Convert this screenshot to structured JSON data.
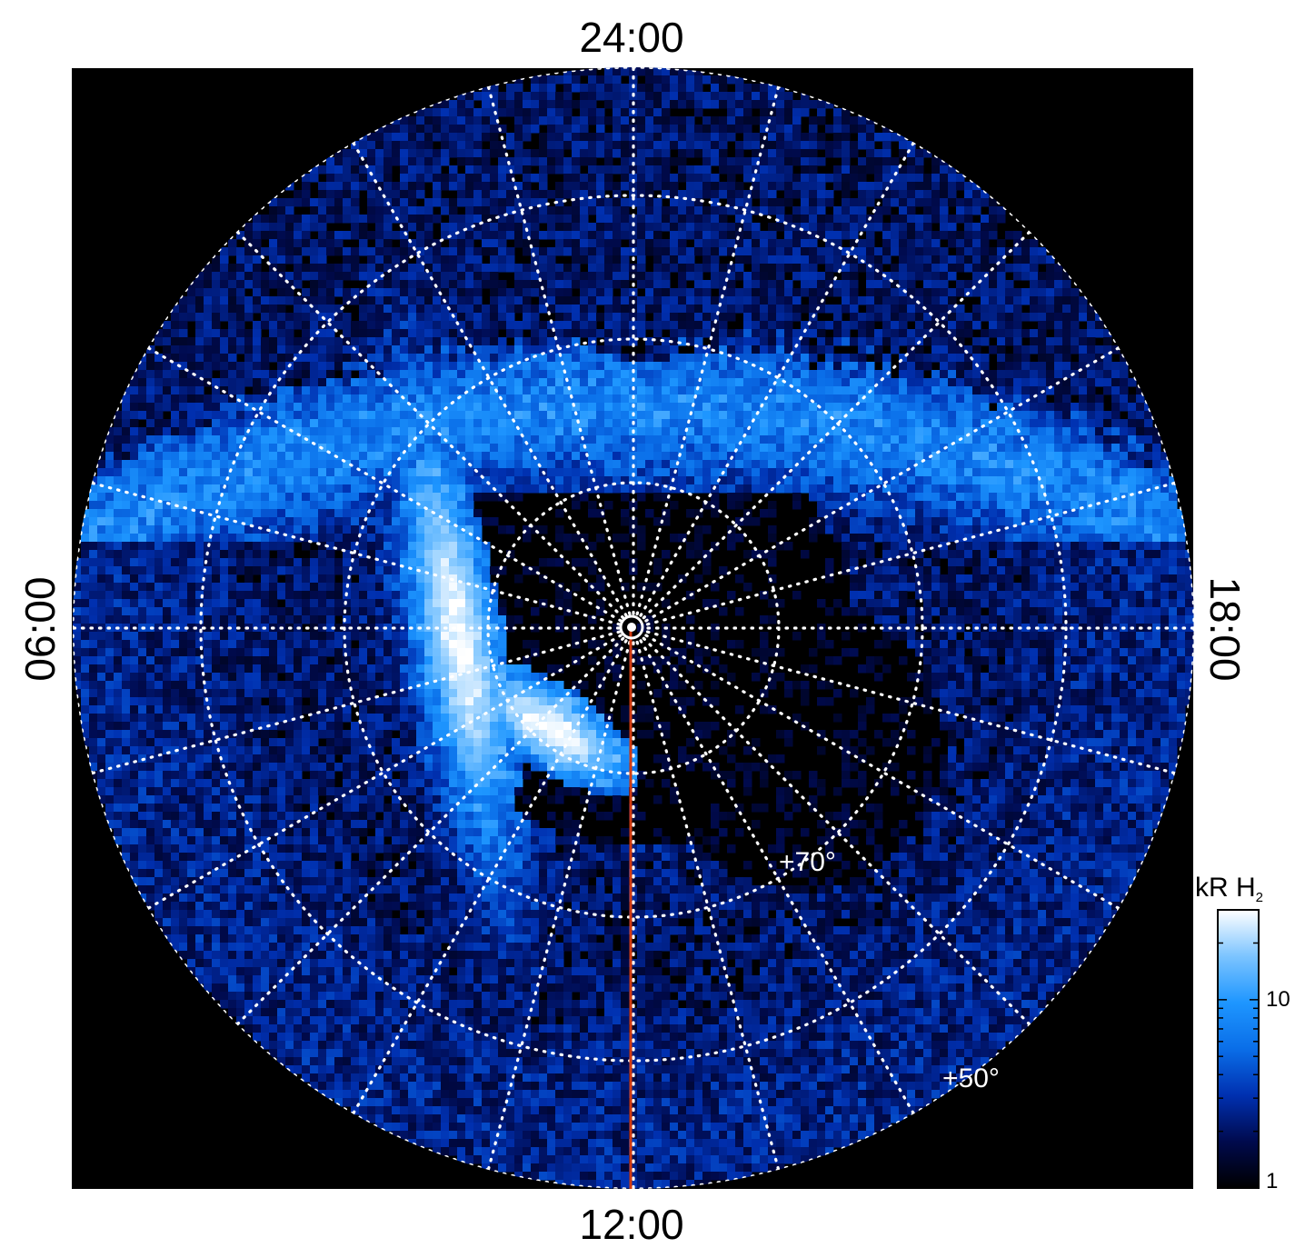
{
  "chart_data": {
    "type": "heatmap",
    "projection": "polar",
    "colormap": [
      "#000000",
      "#000a4d",
      "#0030b0",
      "#0a6ee8",
      "#1e96ff",
      "#7cc4ff",
      "#ffffff"
    ],
    "background_color": "#000000",
    "grid_color": "#ffffff",
    "grid_style": "dotted",
    "meridian_line_color": "#d23c12",
    "local_time_labels": {
      "top": "24:00",
      "bottom": "12:00",
      "left": "06:00",
      "right": "18:00"
    },
    "latitude_labels": [
      "+70°",
      "+50°"
    ],
    "colorbar": {
      "title": "kR H",
      "title_subscript": "2",
      "scale": "log",
      "range": [
        1,
        30
      ],
      "tick_labels": [
        "10",
        "1"
      ]
    },
    "features": [
      {
        "name": "main auroral oval",
        "region": "nightside",
        "level": "bright blue, 10-20 kR"
      },
      {
        "name": "dawn-sector emission patch",
        "region": "morning, 08:00-10:00 LT",
        "level": "saturated white, above 30 kR"
      },
      {
        "name": "equatorward diffuse emission",
        "region": "dayside / low latitude",
        "level": "noisy dark blue, 1-5 kR"
      }
    ]
  }
}
